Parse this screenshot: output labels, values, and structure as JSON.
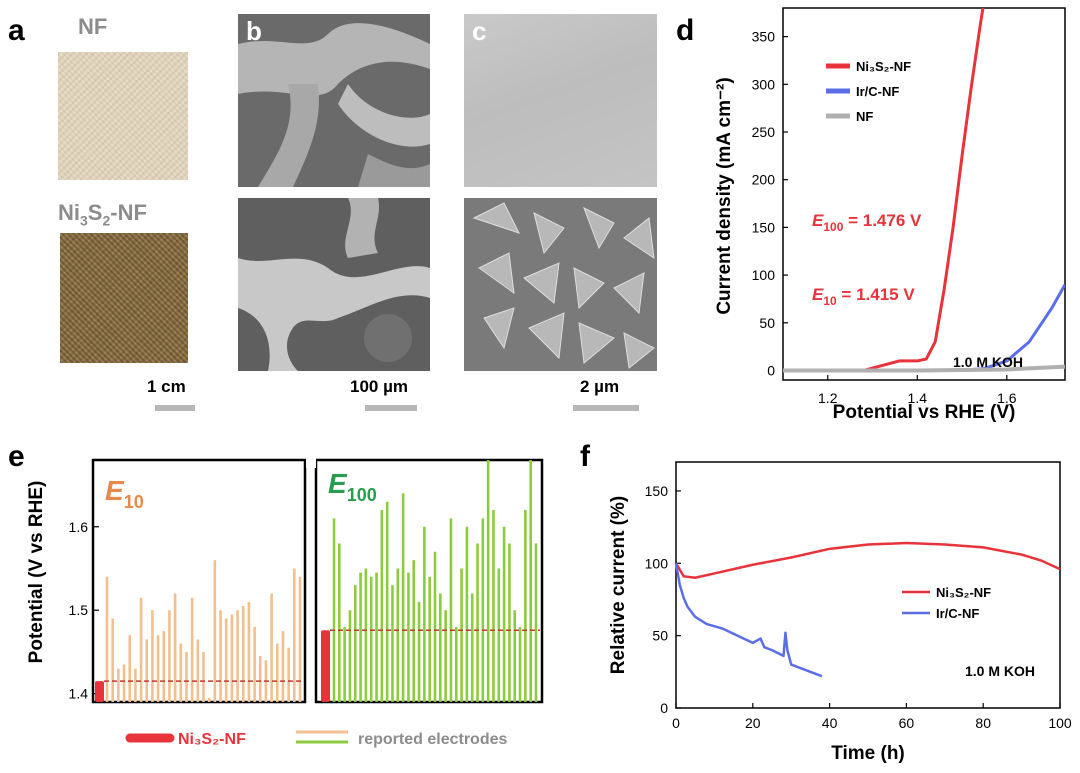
{
  "panels": {
    "a": {
      "letter": "a",
      "label_top": "NF",
      "label_bottom_parts": [
        "Ni",
        "3",
        "S",
        "2",
        "-NF"
      ],
      "scale": "1 cm"
    },
    "b": {
      "letter": "b",
      "scale": "100 µm"
    },
    "c": {
      "letter": "c",
      "scale": "2 µm"
    },
    "d": {
      "letter": "d"
    },
    "e": {
      "letter": "e"
    },
    "f": {
      "letter": "f"
    }
  },
  "colors": {
    "red": "#e8333a",
    "blue": "#5b6ee8",
    "gray": "#b0b0b0",
    "orange": "#f2c08f",
    "green": "#8ccc3c",
    "orange_text": "#e8894a",
    "green_text": "#2a9c4e"
  },
  "chart_data": [
    {
      "id": "d",
      "type": "line",
      "xlabel": "Potential vs RHE (V)",
      "ylabel": "Current density (mA cm⁻²)",
      "xlim": [
        1.1,
        1.73
      ],
      "ylim": [
        -10,
        380
      ],
      "xticks": [
        1.2,
        1.4,
        1.6
      ],
      "yticks": [
        0,
        50,
        100,
        150,
        200,
        250,
        300,
        350
      ],
      "legend": [
        "Ni₃S₂-NF",
        "Ir/C-NF",
        "NF"
      ],
      "legend_position": "top-left",
      "annotations": {
        "e100": {
          "sym": "E",
          "sub": "100",
          "text": " = 1.476 V"
        },
        "e10": {
          "sym": "E",
          "sub": "10",
          "text": " = 1.415 V"
        },
        "electrolyte": "1.0 M KOH"
      },
      "series": [
        {
          "name": "Ni₃S₂-NF",
          "x": [
            1.1,
            1.28,
            1.32,
            1.36,
            1.4,
            1.42,
            1.44,
            1.46,
            1.48,
            1.5,
            1.52,
            1.54,
            1.55
          ],
          "y": [
            0,
            0,
            5,
            10,
            10,
            12,
            30,
            85,
            150,
            225,
            295,
            360,
            390
          ]
        },
        {
          "name": "Ir/C-NF",
          "x": [
            1.1,
            1.5,
            1.55,
            1.6,
            1.65,
            1.7,
            1.73
          ],
          "y": [
            0,
            0,
            2,
            10,
            30,
            65,
            90
          ]
        },
        {
          "name": "NF",
          "x": [
            1.1,
            1.4,
            1.6,
            1.73
          ],
          "y": [
            0,
            0,
            1,
            4
          ]
        }
      ]
    },
    {
      "id": "e",
      "type": "bar",
      "ylabel": "Potential (V vs RHE)",
      "ylim": [
        1.39,
        1.68
      ],
      "yticks": [
        1.4,
        1.5,
        1.6
      ],
      "groups": [
        {
          "title_sym": "E",
          "title_sub": "10",
          "ni3s2": 1.415,
          "reported": [
            1.54,
            1.49,
            1.43,
            1.435,
            1.47,
            1.43,
            1.515,
            1.465,
            1.5,
            1.47,
            1.475,
            1.5,
            1.52,
            1.46,
            1.45,
            1.515,
            1.465,
            1.45,
            1.395,
            1.56,
            1.5,
            1.49,
            1.495,
            1.5,
            1.505,
            1.51,
            1.48,
            1.445,
            1.44,
            1.52,
            1.46,
            1.475,
            1.455,
            1.55,
            1.54
          ]
        },
        {
          "title_sym": "E",
          "title_sub": "100",
          "ni3s2": 1.476,
          "reported": [
            1.61,
            1.58,
            1.48,
            1.5,
            1.53,
            1.545,
            1.55,
            1.54,
            1.545,
            1.62,
            1.63,
            1.53,
            1.55,
            1.64,
            1.545,
            1.56,
            1.51,
            1.6,
            1.54,
            1.57,
            1.52,
            1.5,
            1.61,
            1.48,
            1.55,
            1.6,
            1.52,
            1.58,
            1.61,
            1.68,
            1.62,
            1.55,
            1.6,
            1.58,
            1.5,
            1.48,
            1.62,
            1.68,
            1.58
          ]
        }
      ],
      "legend": [
        "Ni₃S₂-NF",
        "reported electrodes"
      ],
      "legend_position": "bottom"
    },
    {
      "id": "f",
      "type": "line",
      "xlabel": "Time (h)",
      "ylabel": "Relative current (%)",
      "xlim": [
        0,
        100
      ],
      "ylim": [
        0,
        170
      ],
      "xticks": [
        0,
        20,
        40,
        60,
        80,
        100
      ],
      "yticks": [
        0,
        50,
        100,
        150
      ],
      "legend": [
        "Ni₃S₂-NF",
        "Ir/C-NF"
      ],
      "legend_position": "center-right",
      "annotation": "1.0 M KOH",
      "series": [
        {
          "name": "Ni₃S₂-NF",
          "x": [
            0,
            2,
            5,
            10,
            20,
            30,
            40,
            50,
            60,
            70,
            80,
            90,
            95,
            100
          ],
          "y": [
            100,
            91,
            90,
            93,
            99,
            104,
            110,
            113,
            114,
            113,
            111,
            106,
            102,
            96
          ]
        },
        {
          "name": "Ir/C-NF",
          "x": [
            0,
            1,
            2,
            3,
            5,
            8,
            12,
            16,
            20,
            22,
            23,
            25,
            28,
            28.5,
            29,
            30,
            33,
            36,
            38
          ],
          "y": [
            100,
            85,
            76,
            70,
            63,
            58,
            55,
            50,
            45,
            48,
            42,
            40,
            36,
            52,
            40,
            30,
            27,
            24,
            22
          ]
        }
      ]
    }
  ]
}
